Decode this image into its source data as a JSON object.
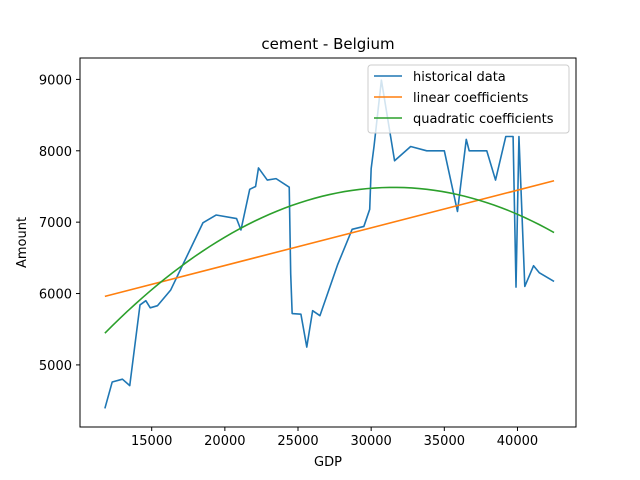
{
  "chart_data": {
    "type": "line",
    "title": "cement - Belgium",
    "xlabel": "GDP",
    "ylabel": "Amount",
    "xlim": [
      10100,
      44000
    ],
    "ylim": [
      4130,
      9300
    ],
    "xticks": [
      15000,
      20000,
      25000,
      30000,
      35000,
      40000
    ],
    "yticks": [
      5000,
      6000,
      7000,
      8000,
      9000
    ],
    "grid": false,
    "legend_position": "top-right",
    "series": [
      {
        "name": "historical data",
        "color": "#1f77b4",
        "style": "line",
        "x": [
          11800,
          12300,
          13000,
          13500,
          14200,
          14600,
          14900,
          15400,
          16300,
          18500,
          19400,
          20800,
          21100,
          21700,
          22100,
          22300,
          22900,
          23500,
          24400,
          24500,
          24600,
          25200,
          25600,
          26000,
          26500,
          27700,
          28700,
          29500,
          29900,
          30000,
          30200,
          30700,
          31600,
          32700,
          33800,
          35000,
          35900,
          36500,
          36700,
          37900,
          38500,
          39200,
          39700,
          39900,
          40100,
          40500,
          41100,
          41500,
          42500
        ],
        "y": [
          4390,
          4760,
          4800,
          4710,
          5840,
          5900,
          5800,
          5830,
          6050,
          6990,
          7100,
          7050,
          6890,
          7460,
          7500,
          7760,
          7590,
          7610,
          7490,
          6280,
          5720,
          5710,
          5250,
          5760,
          5690,
          6400,
          6900,
          6940,
          7180,
          7750,
          8070,
          8990,
          7860,
          8060,
          8000,
          8000,
          7150,
          8160,
          8000,
          8000,
          7590,
          8200,
          8200,
          6090,
          8200,
          6100,
          6390,
          6290,
          6170
        ]
      },
      {
        "name": "linear coefficients",
        "color": "#ff7f0e",
        "style": "line",
        "x": [
          11800,
          42500
        ],
        "y": [
          5960,
          7580
        ]
      },
      {
        "name": "quadratic coefficients",
        "color": "#2ca02c",
        "style": "curve",
        "coefficients": {
          "a": -5.25e-06,
          "b": 0.331,
          "c": 2270
        },
        "x_range": [
          11800,
          42500
        ]
      }
    ]
  }
}
